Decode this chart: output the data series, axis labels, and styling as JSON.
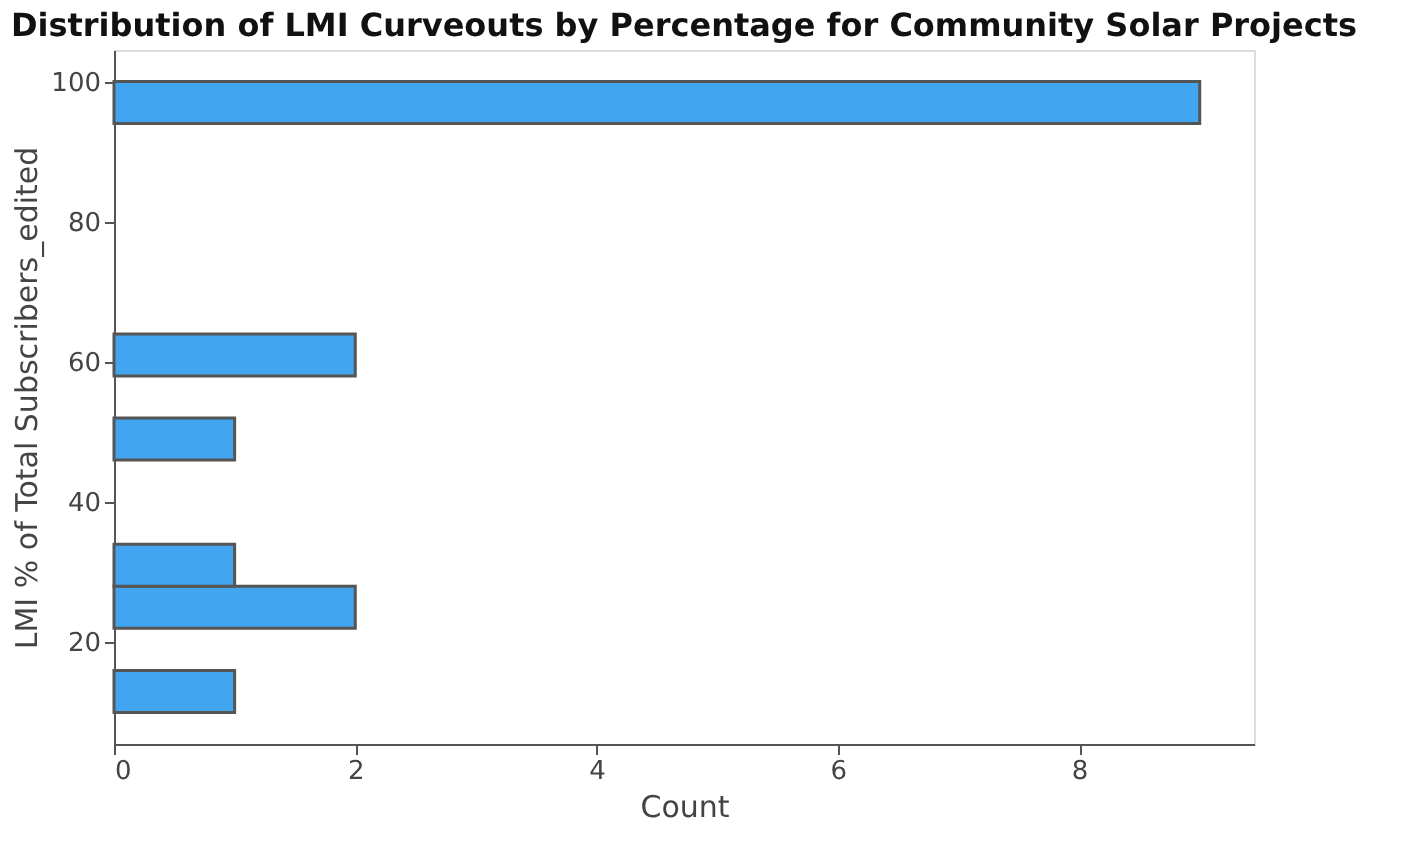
{
  "chart_data": {
    "type": "histogram",
    "orientation": "horizontal",
    "title": "Distribution of LMI Curveouts by Percentage for Community Solar Projects",
    "xlabel": "Count",
    "ylabel": "LMI % of Total Subscribers_edited",
    "bins": [
      10,
      16,
      22,
      28,
      34,
      40,
      46,
      52,
      58,
      64,
      70,
      76,
      82,
      88,
      94,
      100
    ],
    "values": [
      1,
      0,
      2,
      1,
      0,
      0,
      1,
      0,
      2,
      0,
      0,
      0,
      0,
      0,
      9
    ],
    "color": "#42a5f0",
    "xlim": [
      0,
      9.45
    ],
    "xticks": [
      0,
      2,
      4,
      6,
      8
    ],
    "ylim": [
      5.5,
      104.5
    ],
    "yticks": [
      20,
      40,
      60,
      80,
      100
    ],
    "grid": false
  }
}
